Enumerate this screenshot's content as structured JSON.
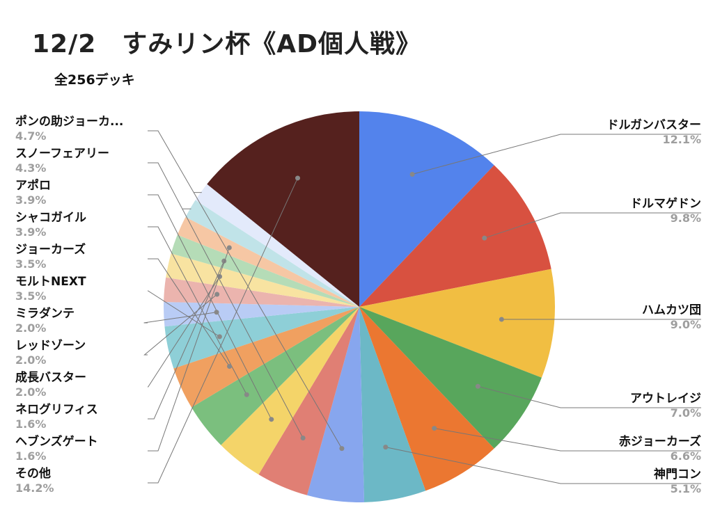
{
  "chart_data": {
    "type": "pie",
    "title": "12/2　すみリン杯《AD個人戦》",
    "subtitle": "全256デッキ",
    "slices": [
      {
        "label": "ドルガンバスター",
        "pct_label": "12.1%",
        "value": 12.1,
        "color": "#5383ec"
      },
      {
        "label": "ドルマゲドン",
        "pct_label": "9.8%",
        "value": 9.8,
        "color": "#d85140"
      },
      {
        "label": "ハムカツ団",
        "pct_label": "9.0%",
        "value": 9.0,
        "color": "#f1be42"
      },
      {
        "label": "アウトレイジ",
        "pct_label": "7.0%",
        "value": 7.0,
        "color": "#58a65c"
      },
      {
        "label": "赤ジョーカーズ",
        "pct_label": "6.6%",
        "value": 6.6,
        "color": "#eb7731"
      },
      {
        "label": "神門コン",
        "pct_label": "5.1%",
        "value": 5.1,
        "color": "#6cb8c6"
      },
      {
        "label": "ポンの助ジョーカ...",
        "pct_label": "4.7%",
        "value": 4.7,
        "color": "#87a6ee"
      },
      {
        "label": "スノーフェアリー",
        "pct_label": "4.3%",
        "value": 4.3,
        "color": "#e07f74"
      },
      {
        "label": "アポロ",
        "pct_label": "3.9%",
        "value": 3.9,
        "color": "#f4d469"
      },
      {
        "label": "シャコガイル",
        "pct_label": "3.9%",
        "value": 3.9,
        "color": "#7bbf7e"
      },
      {
        "label": "ジョーカーズ",
        "pct_label": "3.5%",
        "value": 3.5,
        "color": "#f0a060"
      },
      {
        "label": "モルトNEXT",
        "pct_label": "3.5%",
        "value": 3.5,
        "color": "#8ecfd7"
      },
      {
        "label": "ミラダンテ",
        "pct_label": "2.0%",
        "value": 2.0,
        "color": "#b9ccf5"
      },
      {
        "label": "レッドゾーン",
        "pct_label": "2.0%",
        "value": 2.0,
        "color": "#ebb4ae"
      },
      {
        "label": "成長バスター",
        "pct_label": "2.0%",
        "value": 2.0,
        "color": "#f8e3a1"
      },
      {
        "label": "ネログリフィス",
        "pct_label": "1.6%",
        "value": 1.6,
        "color": "#b5dcb7"
      },
      {
        "label": "ヘブンズゲート",
        "pct_label": "1.6%",
        "value": 1.6,
        "color": "#f6c7a4"
      },
      {
        "label": "（unlabeled slice）",
        "pct_label": "",
        "value": 1.6,
        "color": "#c0e3e8"
      },
      {
        "label": "（unlabeled slice）",
        "pct_label": "",
        "value": 1.6,
        "color": "#e3eafb"
      },
      {
        "label": "その他",
        "pct_label": "14.2%",
        "value": 14.2,
        "color": "#55211e"
      }
    ],
    "legend_placement": "none (leader-line labels)"
  }
}
